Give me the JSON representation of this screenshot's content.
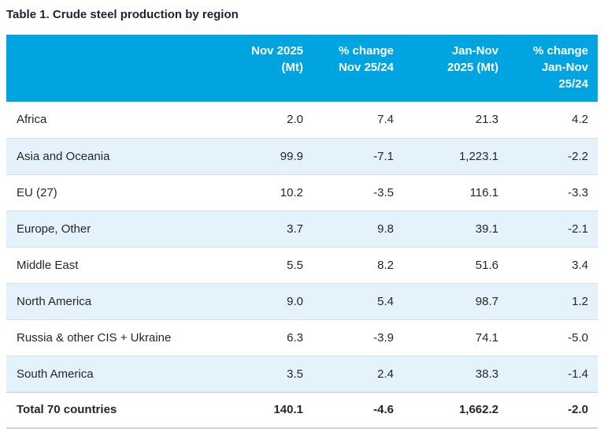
{
  "title": "Table 1. Crude steel production by region",
  "colors": {
    "header_bg": "#00a4e1",
    "header_text": "#ffffff",
    "alt_row_bg": "#e4f3fb",
    "body_text": "#262626",
    "title_text": "#1d2133",
    "row_divider": "#dcdcdc",
    "bottom_border": "#d2d2d2"
  },
  "chart_data": {
    "type": "table",
    "title": "Table 1. Crude steel production by region",
    "columns": [
      {
        "label": ""
      },
      {
        "label": "Nov 2025\n(Mt)"
      },
      {
        "label": "% change\nNov 25/24"
      },
      {
        "label": "Jan-Nov\n2025 (Mt)"
      },
      {
        "label": "% change\nJan-Nov\n25/24"
      }
    ],
    "rows": [
      [
        "Africa",
        "2.0",
        "7.4",
        "21.3",
        "4.2"
      ],
      [
        "Asia and Oceania",
        "99.9",
        "-7.1",
        "1,223.1",
        "-2.2"
      ],
      [
        "EU (27)",
        "10.2",
        "-3.5",
        "116.1",
        "-3.3"
      ],
      [
        "Europe, Other",
        "3.7",
        "9.8",
        "39.1",
        "-2.1"
      ],
      [
        "Middle East",
        "5.5",
        "8.2",
        "51.6",
        "3.4"
      ],
      [
        "North America",
        "9.0",
        "5.4",
        "98.7",
        "1.2"
      ],
      [
        "Russia & other CIS + Ukraine",
        "6.3",
        "-3.9",
        "74.1",
        "-5.0"
      ],
      [
        "South America",
        "3.5",
        "2.4",
        "38.3",
        "-1.4"
      ]
    ],
    "total_row": [
      "Total 70 countries",
      "140.1",
      "-4.6",
      "1,662.2",
      "-2.0"
    ],
    "layout": {
      "numeric_align": "right",
      "zebra_striping": true,
      "grid": "horizontal-dividers-only",
      "header_position": "top"
    }
  }
}
